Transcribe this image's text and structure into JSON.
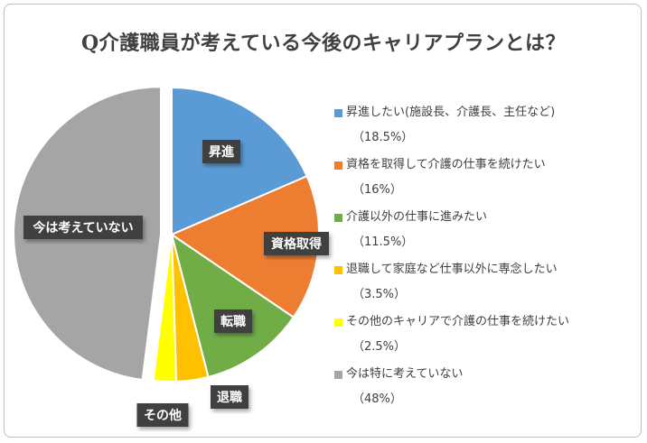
{
  "chart_data": {
    "type": "pie",
    "title": "Q介護職員が考えている今後のキャリアプランとは？",
    "legend_position": "right",
    "slices": [
      {
        "label": "昇進",
        "legend": "昇進したい(施設長、介護長、主任など)",
        "pct_label": "（18.5%）",
        "value": 18.5,
        "color": "#5b9bd5",
        "exploded": false
      },
      {
        "label": "資格取得",
        "legend": "資格を取得して介護の仕事を続けたい",
        "pct_label": "（16%）",
        "value": 16,
        "color": "#ed7d31",
        "exploded": false
      },
      {
        "label": "転職",
        "legend": "介護以外の仕事に進みたい",
        "pct_label": "（11.5%）",
        "value": 11.5,
        "color": "#70ad47",
        "exploded": false
      },
      {
        "label": "退職",
        "legend": "退職して家庭など仕事以外に専念したい",
        "pct_label": "（3.5%）",
        "value": 3.5,
        "color": "#ffc000",
        "exploded": false
      },
      {
        "label": "その他",
        "legend": "その他のキャリアで介護の仕事を続けたい",
        "pct_label": "（2.5%）",
        "value": 2.5,
        "color": "#ffff00",
        "exploded": false
      },
      {
        "label": "今は考えていない",
        "legend": "今は特に考えていない",
        "pct_label": "（48%）",
        "value": 48,
        "color": "#a5a5a5",
        "exploded": true
      }
    ]
  }
}
